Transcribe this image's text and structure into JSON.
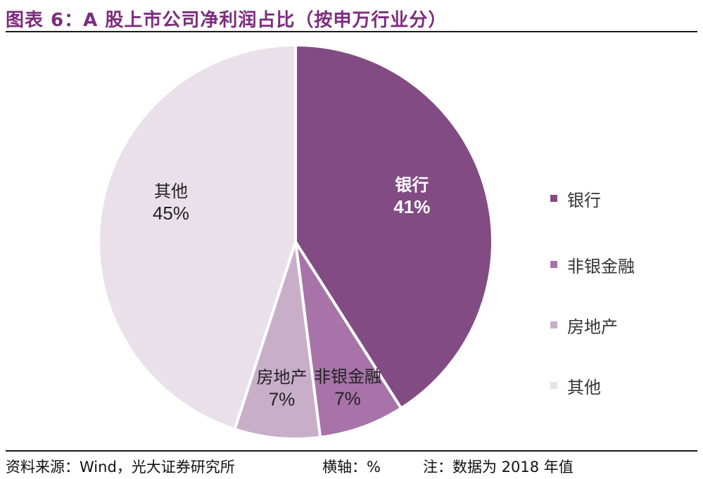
{
  "title": "图表 6：A 股上市公司净利润占比（按申万行业分）",
  "chart_data": {
    "type": "pie",
    "slices": [
      {
        "label": "银行",
        "value": 41,
        "display": "41%",
        "color": "#824b84"
      },
      {
        "label": "非银金融",
        "value": 7,
        "display": "7%",
        "color": "#a873a8"
      },
      {
        "label": "房地产",
        "value": 7,
        "display": "7%",
        "color": "#c9aeca"
      },
      {
        "label": "其他",
        "value": 45,
        "display": "45%",
        "color": "#e9e0ea"
      }
    ],
    "legend": [
      "银行",
      "非银金融",
      "房地产",
      "其他"
    ],
    "legend_position": "right"
  },
  "footer": {
    "source": "资料来源：Wind，光大证券研究所",
    "axis_note": "横轴：%",
    "note": "注：数据为 2018 年值"
  }
}
